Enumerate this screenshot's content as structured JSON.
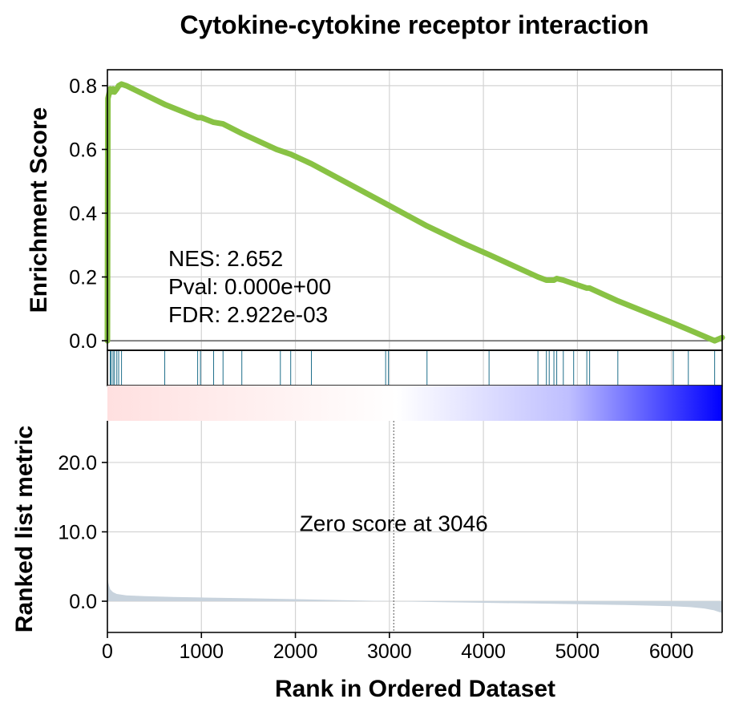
{
  "chart_data": {
    "type": "line",
    "title": "Cytokine-cytokine receptor interaction",
    "xlabel": "Rank in Ordered Dataset",
    "xlim": [
      0,
      6540
    ],
    "x_ticks": [
      0,
      1000,
      2000,
      3000,
      4000,
      5000,
      6000
    ],
    "x_tick_labels": [
      "0",
      "1000",
      "2000",
      "3000",
      "4000",
      "5000",
      "6000"
    ],
    "grid": true,
    "colors": {
      "es_line": "#88c244",
      "hits": "#1f6f8b",
      "zero_line": "#808080",
      "metric_fill": "#c8d3dd",
      "heat_pos": "#ff0000",
      "heat_mid": "#ffffff",
      "heat_neg": "#0000ff"
    },
    "enrichment_panel": {
      "ylabel": "Enrichment Score",
      "ylim": [
        -0.03,
        0.85
      ],
      "y_ticks": [
        0.0,
        0.2,
        0.4,
        0.6,
        0.8
      ],
      "y_tick_labels": [
        "0.0",
        "0.2",
        "0.4",
        "0.6",
        "0.8"
      ],
      "es_x": [
        0,
        5,
        30,
        40,
        60,
        75,
        100,
        120,
        150,
        200,
        620,
        960,
        1000,
        1130,
        1230,
        1430,
        1800,
        1950,
        2170,
        2960,
        3400,
        3790,
        4060,
        4580,
        4670,
        4700,
        4750,
        4780,
        4850,
        4950,
        5100,
        5130,
        5430,
        6020,
        6180,
        6460,
        6540
      ],
      "es_y": [
        0.0,
        0.76,
        0.79,
        0.78,
        0.79,
        0.78,
        0.79,
        0.8,
        0.805,
        0.8,
        0.74,
        0.7,
        0.7,
        0.685,
        0.68,
        0.65,
        0.6,
        0.585,
        0.555,
        0.43,
        0.36,
        0.305,
        0.27,
        0.2,
        0.19,
        0.19,
        0.19,
        0.195,
        0.19,
        0.18,
        0.165,
        0.165,
        0.125,
        0.055,
        0.035,
        0.0,
        0.01
      ],
      "annotations": [
        "NES: 2.652",
        "Pval: 0.000e+00",
        "FDR: 2.922e-03"
      ]
    },
    "hits": [
      30,
      40,
      60,
      75,
      100,
      120,
      150,
      610,
      960,
      990,
      1130,
      1230,
      1430,
      1840,
      1950,
      2170,
      2960,
      2990,
      3400,
      4060,
      4580,
      4670,
      4700,
      4750,
      4780,
      4850,
      4960,
      5100,
      5130,
      5430,
      6020,
      6180,
      6460
    ],
    "metric_panel": {
      "ylabel": "Ranked list metric",
      "ylim": [
        -4.5,
        26
      ],
      "y_ticks": [
        0.0,
        10.0,
        20.0
      ],
      "y_tick_labels": [
        "0.0",
        "10.0",
        "20.0"
      ],
      "zero_score_rank": 3046,
      "zero_score_label": "Zero score at 3046",
      "metric_x": [
        0,
        10,
        30,
        60,
        100,
        200,
        400,
        700,
        1000,
        1500,
        2000,
        2500,
        3046,
        3500,
        4000,
        4500,
        5000,
        5500,
        6000,
        6200,
        6350,
        6450,
        6540
      ],
      "metric_y": [
        3.5,
        2.6,
        1.7,
        1.3,
        1.05,
        0.85,
        0.72,
        0.62,
        0.54,
        0.42,
        0.3,
        0.15,
        0.0,
        -0.12,
        -0.22,
        -0.32,
        -0.42,
        -0.55,
        -0.72,
        -0.85,
        -1.05,
        -1.3,
        -1.7
      ]
    }
  }
}
